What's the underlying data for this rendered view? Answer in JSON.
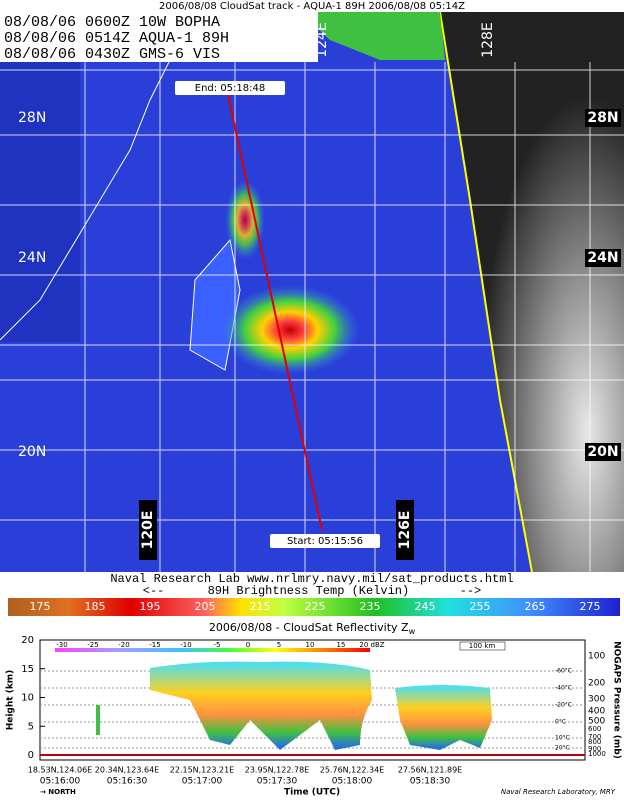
{
  "header": {
    "title": "2006/08/08 CloudSat track - AQUA-1 89H  2006/08/08 05:14Z"
  },
  "map": {
    "overlay_lines": [
      "08/08/06  0600Z 10W BOPHA",
      "08/08/06  0514Z AQUA-1 89H",
      "08/08/06  0430Z GMS-6 VIS"
    ],
    "lat_labels_left": [
      "28N",
      "24N",
      "20N"
    ],
    "lat_labels_right": [
      "28N",
      "24N",
      "20N"
    ],
    "lon_labels_top": [
      "124E",
      "128E"
    ],
    "lon_labels_bottom": [
      "120E",
      "126E"
    ],
    "track_end": "End: 05:18:48",
    "track_start": "Start: 05:15:56"
  },
  "footer": {
    "credit": "Naval Research Lab  www.nrlmry.navy.mil/sat_products.html",
    "scale_label": "<--      89H Brightness Temp (Kelvin)       -->"
  },
  "colorbar": {
    "labels": [
      175,
      185,
      195,
      205,
      215,
      225,
      235,
      245,
      255,
      265,
      275
    ]
  },
  "profile": {
    "title": "2006/08/08 - CloudSat Reflectivity Z",
    "title_sub": "w",
    "y_label": "Height (km)",
    "y_ticks": [
      0,
      5,
      10,
      15,
      20
    ],
    "y2_label": "NOGAPS Pressure (mb)",
    "y2_ticks": [
      100,
      200,
      300,
      400,
      500,
      600,
      700,
      800,
      900,
      1000
    ],
    "dbz_ticks": [
      -30,
      -25,
      -20,
      -15,
      -10,
      -5,
      0,
      5,
      10,
      15
    ],
    "dbz_unit": "20 dBZ",
    "distance_scale": "100 km",
    "temp_labels": [
      "-60°C",
      "-40°C",
      "-20°C",
      "0°C",
      "10°C",
      "20°C"
    ],
    "x_positions": [
      "18.53N,124.06E",
      "20.34N,123.64E",
      "22.15N,123.21E",
      "23.95N,122.78E",
      "25.76N,122.34E",
      "27.56N,121.89E"
    ],
    "x_times": [
      "05:16:00",
      "05:16:30",
      "05:17:00",
      "05:17:30",
      "05:18:00",
      "05:18:30"
    ],
    "x_label": "Time (UTC)",
    "direction": "→ NORTH",
    "credit": "Naval Research Laboratory, MRY"
  }
}
